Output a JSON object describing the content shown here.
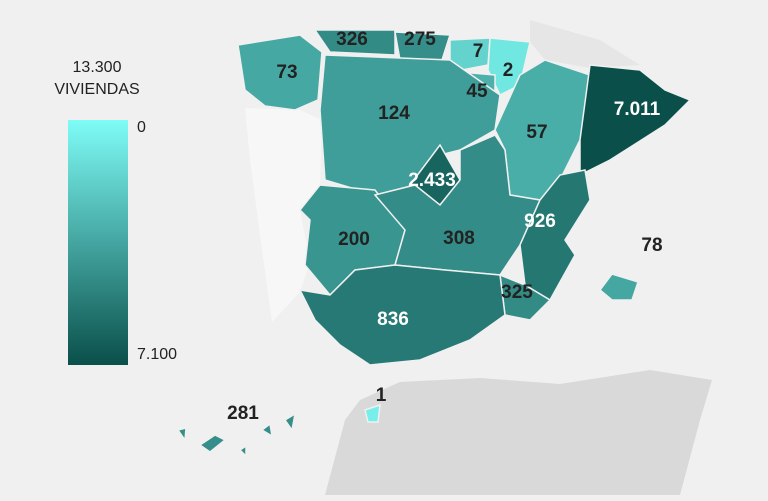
{
  "legend": {
    "title": [
      "13.300",
      "VIVIENDAS"
    ],
    "ticks": [
      0,
      {
        "value": 7100,
        "label": "7.100"
      }
    ],
    "colors": [
      "#7ffcf7",
      "#0a4f4a"
    ]
  },
  "regions": {
    "values": [
      73,
      326,
      275,
      7,
      2,
      45,
      124,
      57,
      7011,
      2433,
      200,
      308,
      926,
      78,
      325,
      836,
      1,
      281
    ],
    "value_labels": [
      "73",
      "326",
      "275",
      "7",
      "2",
      "45",
      "124",
      "57",
      "7.011",
      "2.433",
      "200",
      "308",
      "926",
      "78",
      "325",
      "836",
      "1",
      "281"
    ]
  }
}
